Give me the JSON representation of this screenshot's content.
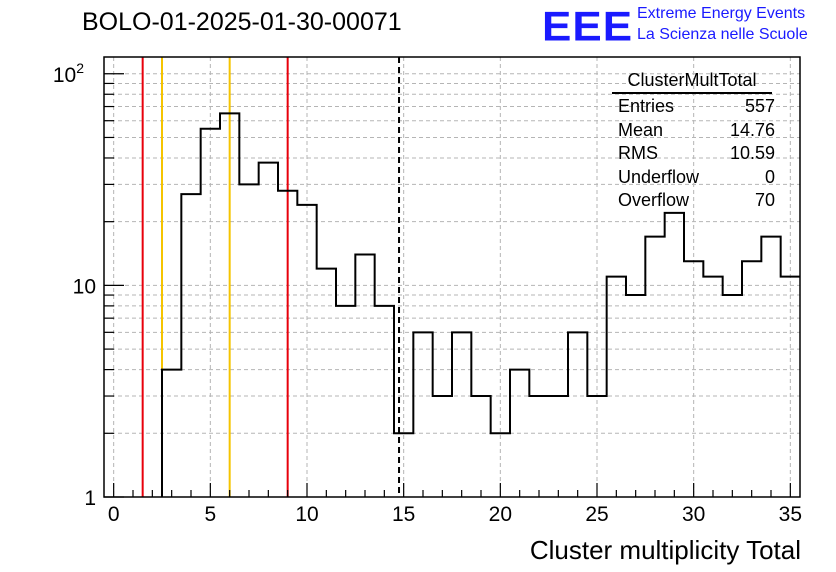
{
  "title": "BOLO-01-2025-01-30-00071",
  "logo": {
    "mark": "EEE",
    "line1": "Extreme Energy Events",
    "line2": "La Scienza nelle Scuole",
    "color": "#1a1aff"
  },
  "stats": {
    "name": "ClusterMultTotal",
    "rows": [
      {
        "label": "Entries",
        "value": "557"
      },
      {
        "label": "Mean",
        "value": "14.76"
      },
      {
        "label": "RMS",
        "value": "10.59"
      },
      {
        "label": "Underflow",
        "value": "0"
      },
      {
        "label": "Overflow",
        "value": "70"
      }
    ]
  },
  "chart_data": {
    "type": "histogram",
    "title": "BOLO-01-2025-01-30-00071",
    "xlabel": "Cluster multiplicity Total",
    "ylabel": "",
    "xlim": [
      -0.5,
      35.5
    ],
    "ylim": [
      1,
      120
    ],
    "yscale": "log",
    "grid": true,
    "bin_edges_start": 2.5,
    "bin_width": 1,
    "bin_centers": [
      3,
      4,
      5,
      6,
      7,
      8,
      9,
      10,
      11,
      12,
      13,
      14,
      15,
      16,
      17,
      18,
      19,
      20,
      21,
      22,
      23,
      24,
      25,
      26,
      27,
      28,
      29,
      30,
      31,
      32,
      33,
      34,
      35
    ],
    "values": [
      4,
      27,
      55,
      65,
      30,
      38,
      28,
      24,
      12,
      8,
      14,
      8,
      2,
      6,
      3,
      6,
      3,
      2,
      4,
      3,
      3,
      6,
      3,
      11,
      9,
      17,
      22,
      13,
      11,
      9,
      13,
      17,
      11
    ],
    "xticks": [
      0,
      5,
      10,
      15,
      20,
      25,
      30,
      35
    ],
    "yticks": [
      {
        "value": 1,
        "label": "1"
      },
      {
        "value": 10,
        "label": "10"
      },
      {
        "value": 100,
        "label": "10",
        "sup": "2"
      }
    ],
    "vertical_lines": [
      {
        "x": 1.5,
        "color": "#e8000b",
        "style": "solid"
      },
      {
        "x": 2.5,
        "color": "#f5c400",
        "style": "solid"
      },
      {
        "x": 6.0,
        "color": "#f5c400",
        "style": "solid"
      },
      {
        "x": 9.0,
        "color": "#e8000b",
        "style": "solid"
      },
      {
        "x": 14.76,
        "color": "#000000",
        "style": "dashed"
      }
    ]
  }
}
